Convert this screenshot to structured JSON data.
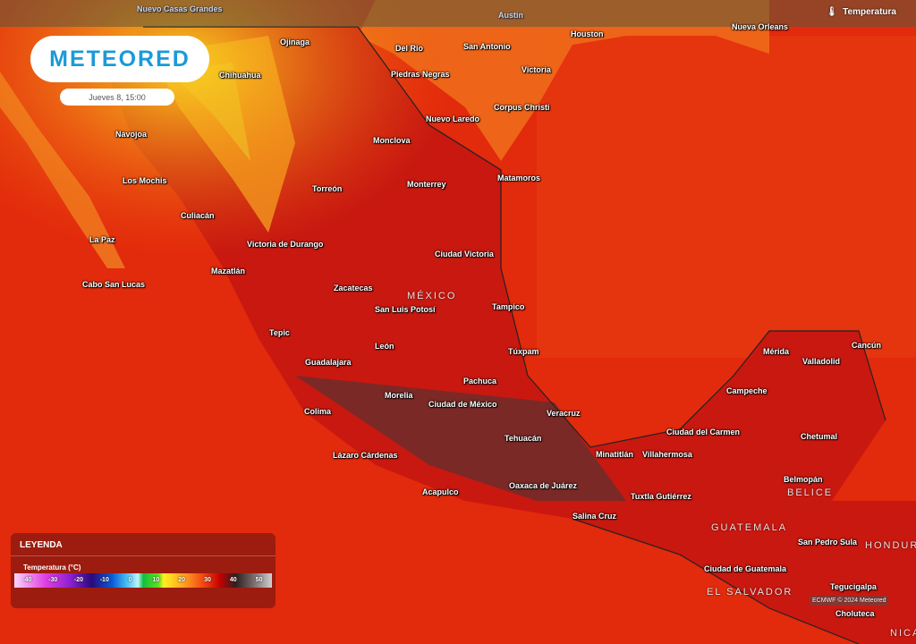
{
  "header": {
    "brand": "METEORED",
    "datetime": "Jueves 8, 15:00",
    "layer": "Temperatura",
    "layer_icon": "thermometer-icon"
  },
  "legend": {
    "title": "LEYENDA",
    "variable": "Temperatura (°C)",
    "ticks": [
      "-40",
      "-30",
      "-20",
      "-10",
      "0",
      "10",
      "20",
      "30",
      "40",
      "50"
    ]
  },
  "credit": "ECMWF © 2024 Meteored",
  "colors": {
    "ocean": "#e0200a",
    "land_hot": "#b01010",
    "brand": "#1a9ad9"
  },
  "cities": [
    "Nuevo Casas Grandes",
    "Austin",
    "Ojinaga",
    "Del Rio",
    "San Antonio",
    "Houston",
    "Nueva Orleans",
    "Chihuahua",
    "Piedras Negras",
    "Victoria",
    "Corpus Christi",
    "Nuevo Laredo",
    "Navojoa",
    "Monclova",
    "Los Mochis",
    "Matamoros",
    "Monterrey",
    "Torreón",
    "Culiacán",
    "La Paz",
    "Victoria de Durango",
    "Ciudad Victoria",
    "Mazatlán",
    "Cabo San Lucas",
    "Zacatecas",
    "San Luis Potosí",
    "Tampico",
    "Tepic",
    "León",
    "Túxpam",
    "Mérida",
    "Cancún",
    "Valladolid",
    "Guadalajara",
    "Pachuca",
    "Campeche",
    "Morelia",
    "Ciudad de México",
    "Colima",
    "Veracruz",
    "Ciudad del Carmen",
    "Chetumal",
    "Tehuacán",
    "Lázaro Cárdenas",
    "Minatitlán",
    "Villahermosa",
    "Belmopán",
    "Acapulco",
    "Oaxaca de Juárez",
    "Tuxtla Gutiérrez",
    "Salina Cruz",
    "San Pedro Sula",
    "Ciudad de Guatemala",
    "Tegucigalpa",
    "Choluteca"
  ],
  "countries": [
    "MÉXICO",
    "BELICE",
    "GUATEMALA",
    "HONDURAS",
    "EL SALVADOR",
    "NICA"
  ]
}
